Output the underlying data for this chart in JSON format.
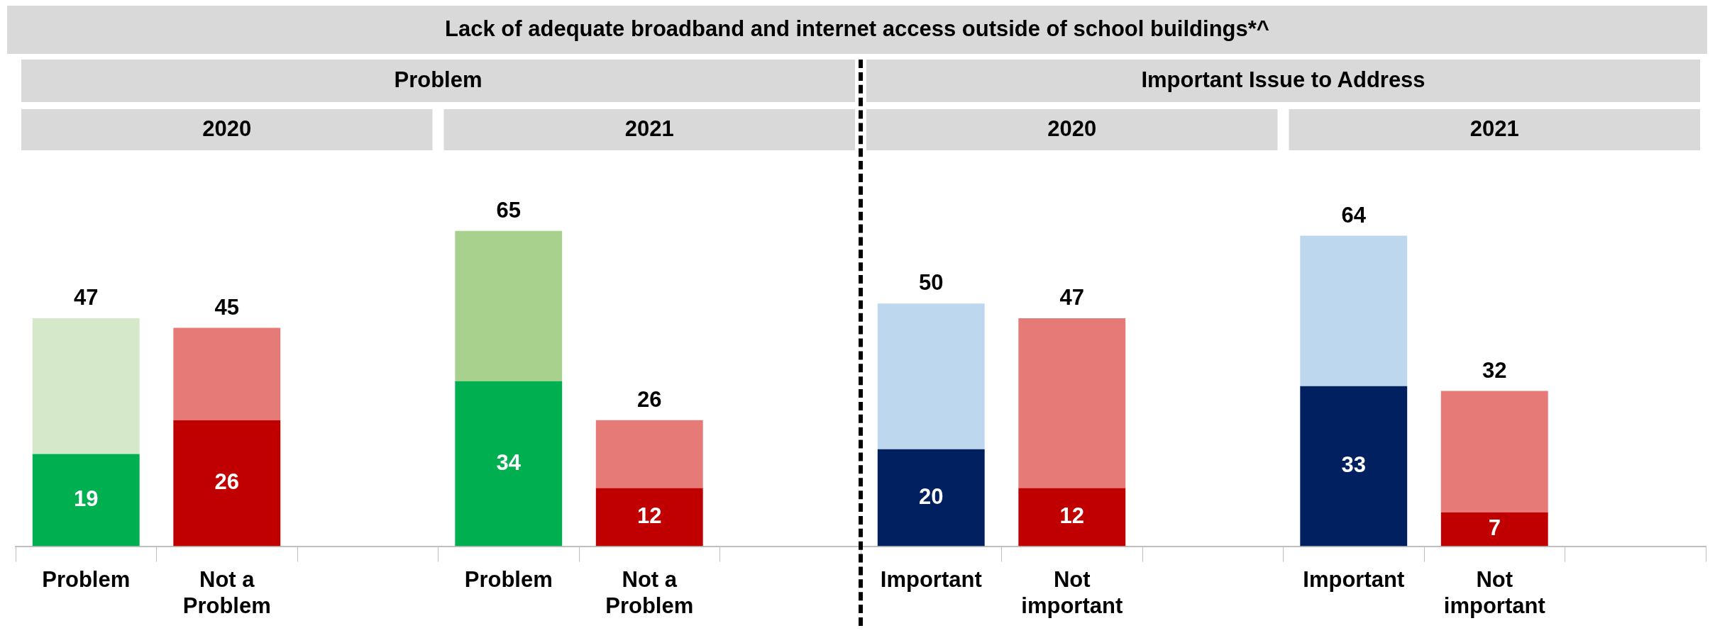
{
  "chart_data": {
    "type": "bar",
    "title": "Lack of adequate broadband and internet access outside of school buildings*^",
    "annotations": [
      "Problem",
      "Important Issue to Address",
      "2020",
      "2021",
      "2020",
      "2021"
    ],
    "categories": [
      "Problem",
      "Not a Problem",
      null,
      "Problem",
      "Not a Problem",
      null,
      "Important",
      "Not important",
      null,
      "Important",
      "Not important",
      null
    ],
    "stacked": true,
    "series": [
      {
        "colors": [
          "#00b050",
          "#c00000",
          null,
          "#00b050",
          "#c00000",
          null,
          "#002060",
          "#c00000",
          null,
          "#002060",
          "#c00000",
          null
        ],
        "values": [
          19,
          26,
          null,
          34,
          12,
          null,
          20,
          12,
          null,
          33,
          7,
          null
        ],
        "value_labels": [
          "19",
          "26",
          null,
          "34",
          "12",
          null,
          "20",
          "12",
          null,
          "33",
          "7",
          null
        ]
      },
      {
        "colors": [
          "#d5e8c9",
          "#e67a76",
          null,
          "#a9d18e",
          "#e67a76",
          null,
          "#bdd7ee",
          "#e67a76",
          null,
          "#bdd7ee",
          "#e67a76",
          null
        ],
        "values": [
          28,
          19,
          null,
          31,
          14,
          null,
          30,
          35,
          null,
          31,
          25,
          null
        ]
      }
    ],
    "totals": [
      "47",
      "45",
      null,
      "65",
      "26",
      null,
      "50",
      "47",
      null,
      "64",
      "32",
      null
    ]
  }
}
